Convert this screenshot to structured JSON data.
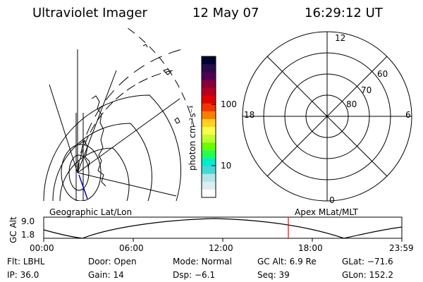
{
  "header": {
    "instrument": "Ultraviolet Imager",
    "date": "12 May 07",
    "time": "16:29:12 UT"
  },
  "colorbar": {
    "unit_label": "photon cm⁻²s⁻¹",
    "ticks": [
      "100",
      "10"
    ],
    "colors": [
      "#000033",
      "#2a0b4a",
      "#520050",
      "#86003a",
      "#b8001e",
      "#e00000",
      "#f23300",
      "#fb7d00",
      "#ffd21e",
      "#f7ff4b",
      "#bfff30",
      "#66ff00",
      "#22ff55",
      "#00eccc",
      "#48d6d8",
      "#b4e4e6",
      "#dcecf0",
      "#ffffff"
    ]
  },
  "polar_plot": {
    "time_labels": [
      "12",
      "18",
      "6",
      "0"
    ],
    "lat_labels": [
      "60",
      "70",
      "80"
    ]
  },
  "timeline": {
    "axis_label": "GC Alt",
    "left_caption": "Geographic Lat/Lon",
    "right_caption": "Apex MLat/MLT",
    "y_ticks": [
      "9.0",
      "1.8"
    ],
    "x_ticks": [
      "00:00",
      "06:00",
      "12:00",
      "18:00",
      "23:59"
    ],
    "marker_color": "#ff0000"
  },
  "info": {
    "row1": [
      {
        "label": "Flt:",
        "value": "LBHL"
      },
      {
        "label": "Door:",
        "value": "Open"
      },
      {
        "label": "Mode:",
        "value": "Normal"
      },
      {
        "label": "GC Alt:",
        "value": "6.9 Re"
      },
      {
        "label": "GLat:",
        "value": "−71.6"
      }
    ],
    "row2": [
      {
        "label": "IP:",
        "value": "36.0"
      },
      {
        "label": "Gain:",
        "value": "14"
      },
      {
        "label": "Dsp:",
        "value": "−6.1"
      },
      {
        "label": "Seq:",
        "value": "39"
      },
      {
        "label": "GLon:",
        "value": "152.2"
      }
    ]
  }
}
